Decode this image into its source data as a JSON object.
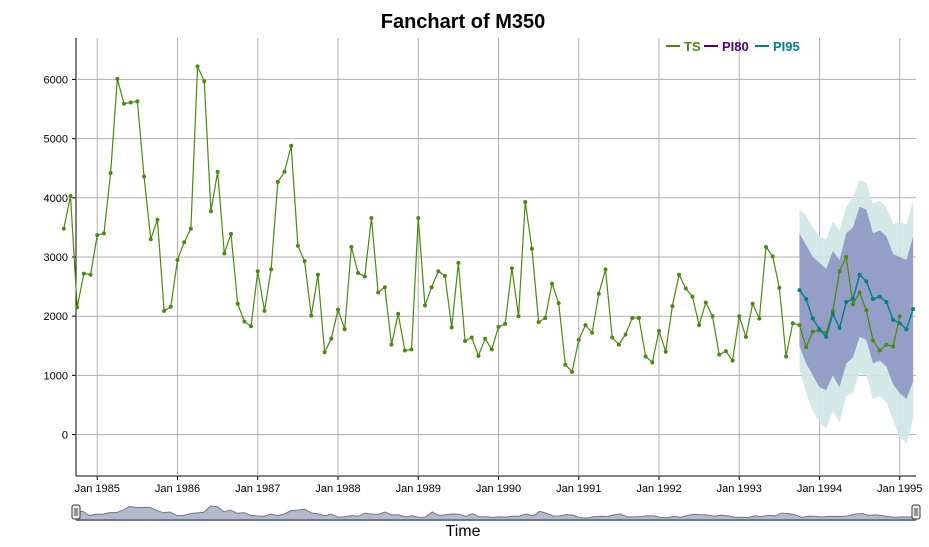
{
  "chart_data": {
    "type": "line",
    "title": "Fanchart of M350",
    "xlabel": "Time",
    "ylabel": "",
    "ylim": [
      -700,
      6700
    ],
    "yticks": [
      0,
      1000,
      2000,
      3000,
      4000,
      5000,
      6000
    ],
    "xticks": [
      "Jan 1985",
      "Jan 1986",
      "Jan 1987",
      "Jan 1988",
      "Jan 1989",
      "Jan 1990",
      "Jan 1991",
      "Jan 1992",
      "Jan 1993",
      "Jan 1994",
      "Jan 1995"
    ],
    "grid": true,
    "legend_position": "top-right",
    "start": "1984-08",
    "forecast_start": "1993-10",
    "colors": {
      "TS": "#4a8a0e",
      "PI80": "#4b0082",
      "PI95": "#008080",
      "band80": "#8e96c3",
      "band95": "#cfe6e4"
    },
    "series": [
      {
        "name": "TS",
        "values": [
          3480,
          4030,
          2150,
          2720,
          2700,
          3370,
          3400,
          4420,
          6010,
          5590,
          5610,
          5630,
          4360,
          3300,
          3630,
          2090,
          2160,
          2950,
          3250,
          3480,
          6220,
          5970,
          3770,
          4440,
          3060,
          3390,
          2210,
          1910,
          1830,
          2760,
          2090,
          2790,
          4270,
          4440,
          4880,
          3190,
          2930,
          2010,
          2700,
          1390,
          1620,
          2110,
          1780,
          3170,
          2730,
          2670,
          3660,
          2400,
          2490,
          1520,
          2040,
          1420,
          1440,
          3660,
          2180,
          2490,
          2760,
          2680,
          1810,
          2900,
          1580,
          1640,
          1330,
          1620,
          1440,
          1820,
          1870,
          2810,
          2000,
          3930,
          3140,
          1900,
          1970,
          2550,
          2220,
          1180,
          1060,
          1600,
          1850,
          1720,
          2380,
          2790,
          1640,
          1520,
          1690,
          1970,
          1970,
          1320,
          1220,
          1750,
          1400,
          2170,
          2700,
          2470,
          2330,
          1850,
          2230,
          2000,
          1350,
          1410,
          1250,
          2000,
          1650,
          2210,
          1960,
          3170,
          3010,
          2480,
          1320,
          1880,
          1850,
          1480,
          1740,
          1760,
          1720,
          2090,
          2760,
          3000,
          2200,
          2400,
          2100,
          1590,
          1420,
          1520,
          1490,
          2000
        ]
      },
      {
        "name": "PI80",
        "values": []
      },
      {
        "name": "PI95",
        "values": [
          2440,
          2290,
          1960,
          1780,
          1650,
          2040,
          1800,
          2240,
          2290,
          2700,
          2590,
          2290,
          2330,
          2240,
          1940,
          1880,
          1780,
          2120
        ],
        "lo80": [
          1500,
          1200,
          1000,
          800,
          750,
          1000,
          800,
          1200,
          1300,
          1650,
          1600,
          1200,
          1250,
          1150,
          850,
          700,
          600,
          900
        ],
        "hi80": [
          3400,
          3200,
          3000,
          2900,
          2800,
          3100,
          2950,
          3400,
          3500,
          3850,
          3800,
          3400,
          3450,
          3350,
          3050,
          3000,
          2950,
          3350
        ],
        "lo95": [
          1100,
          700,
          400,
          200,
          100,
          400,
          200,
          650,
          700,
          1050,
          1000,
          600,
          650,
          550,
          250,
          -50,
          -150,
          250
        ],
        "hi95": [
          3800,
          3700,
          3500,
          3350,
          3300,
          3600,
          3450,
          3850,
          4000,
          4300,
          4250,
          3900,
          3950,
          3850,
          3550,
          3600,
          3550,
          3950
        ]
      }
    ]
  }
}
